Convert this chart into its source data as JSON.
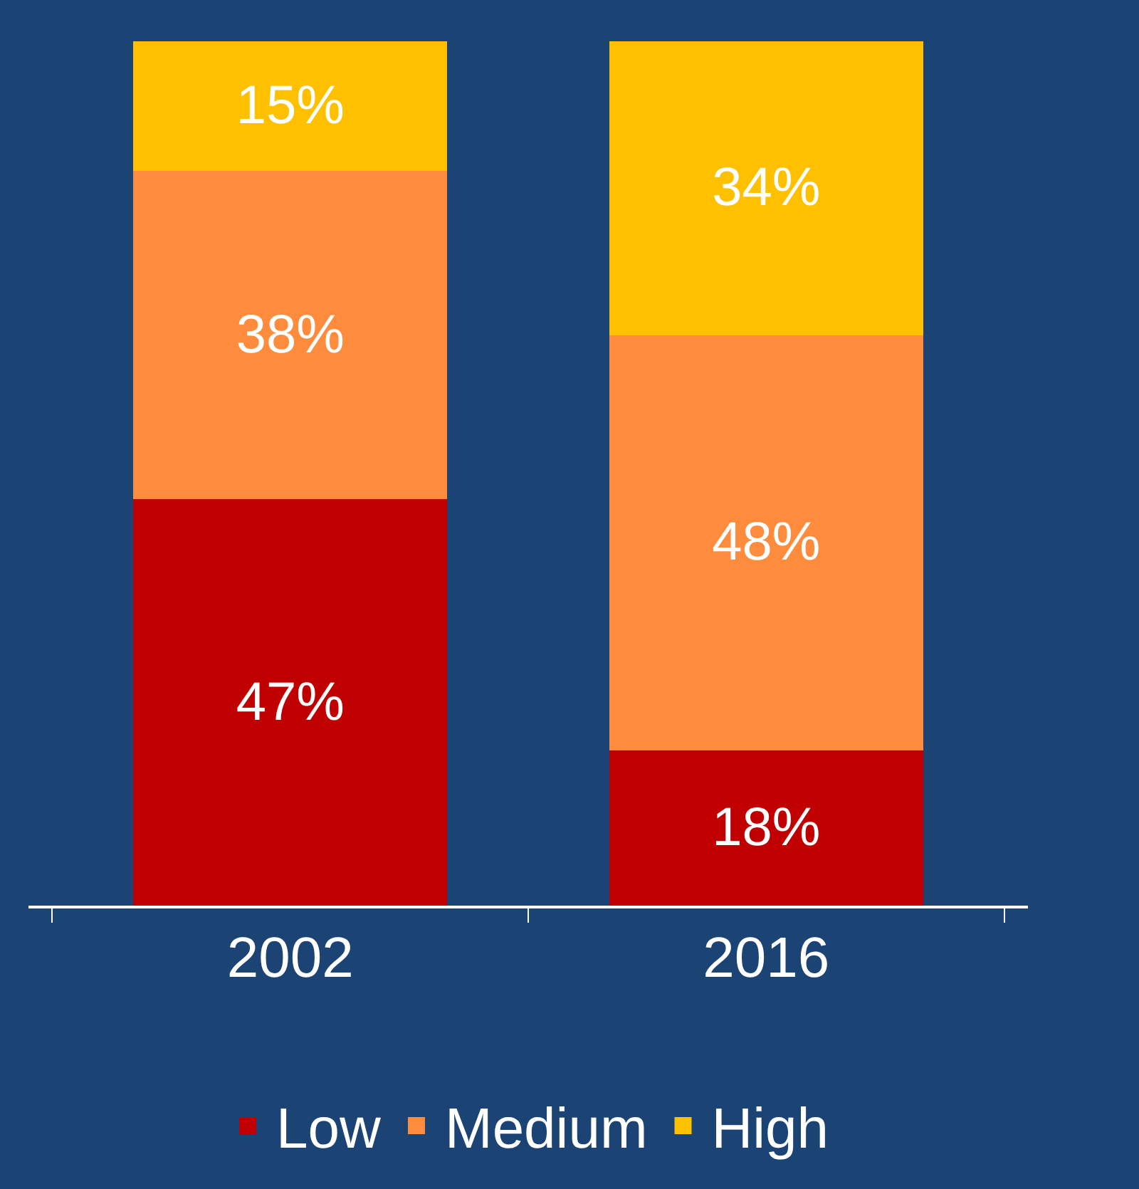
{
  "chart_data": {
    "type": "bar",
    "stacked": true,
    "categories": [
      "2002",
      "2016"
    ],
    "series": [
      {
        "name": "Low",
        "color": "#c00000",
        "values": [
          47,
          18
        ],
        "value_labels": [
          "47%",
          "18%"
        ]
      },
      {
        "name": "Medium",
        "color": "#ff8c3c",
        "values": [
          38,
          48
        ],
        "value_labels": [
          "38%",
          "48%"
        ]
      },
      {
        "name": "High",
        "color": "#ffc000",
        "values": [
          15,
          34
        ],
        "value_labels": [
          "15%",
          "34%"
        ]
      }
    ],
    "legend": "bottom",
    "grid": false
  }
}
